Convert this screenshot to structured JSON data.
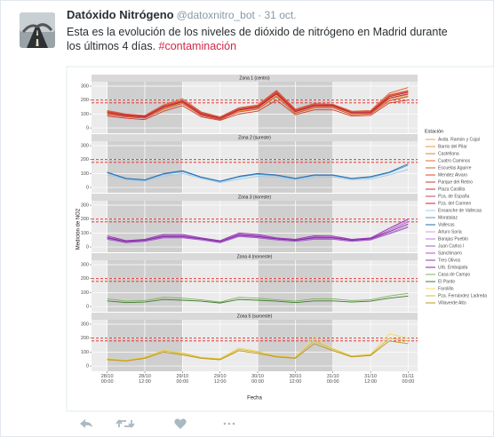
{
  "tweet": {
    "name": "Datóxido Nitrógeno",
    "meta": "@datoxnitro_bot · 31 oct.",
    "text_lines": [
      "Esta es la evolución de los niveles de dióxido de nitrógeno en Madrid durante",
      "los últimos 4 días."
    ],
    "hashtag": "#contaminación"
  },
  "figure": {
    "ylabel": "Medición de NO2",
    "xlabel": "Fecha",
    "legend_title": "Estación"
  },
  "chart_data": [
    {
      "type": "line",
      "title": "Zona 1 (centro)",
      "x": [
        "28/10 00:00",
        "28/10 06:00",
        "28/10 12:00",
        "28/10 18:00",
        "29/10 00:00",
        "29/10 06:00",
        "29/10 12:00",
        "29/10 18:00",
        "30/10 00:00",
        "30/10 06:00",
        "30/10 12:00",
        "30/10 18:00",
        "31/10 00:00",
        "31/10 06:00",
        "31/10 12:00",
        "31/10 18:00",
        "01/11 00:00"
      ],
      "xlim": [
        "27/10 19:00",
        "01/11 03:00"
      ],
      "ylim": [
        -38,
        332
      ],
      "yticks": [
        0,
        100,
        200,
        300
      ],
      "xticks": [
        "28/10 00:00",
        "28/10 12:00",
        "29/10 00:00",
        "29/10 12:00",
        "30/10 00:00",
        "30/10 12:00",
        "31/10 00:00",
        "31/10 12:00",
        "01/11 00:00"
      ],
      "bands": [
        [
          "28/10 00:00",
          "29/10 00:00"
        ],
        [
          "30/10 00:00",
          "31/10 00:00"
        ]
      ],
      "reference_lines": [
        180,
        200
      ],
      "series": [
        {
          "name": "Avda. Ramón y Cajal",
          "color": "#e9a63f",
          "values": [
            100,
            85,
            75,
            140,
            180,
            95,
            65,
            120,
            140,
            230,
            110,
            150,
            150,
            100,
            105,
            200,
            230
          ]
        },
        {
          "name": "Barrio del Pilar",
          "color": "#e6943a",
          "values": [
            120,
            95,
            85,
            160,
            200,
            110,
            75,
            140,
            160,
            260,
            130,
            170,
            165,
            115,
            120,
            240,
            270
          ]
        },
        {
          "name": "Castellana",
          "color": "#e38236",
          "values": [
            105,
            88,
            78,
            145,
            185,
            98,
            68,
            125,
            145,
            240,
            115,
            155,
            155,
            105,
            108,
            210,
            240
          ]
        },
        {
          "name": "Cuatro Caminos",
          "color": "#df6f31",
          "values": [
            115,
            92,
            82,
            155,
            195,
            105,
            72,
            135,
            155,
            255,
            125,
            165,
            162,
            112,
            115,
            230,
            260
          ]
        },
        {
          "name": "Escuelas Aguirre",
          "color": "#da5c2c",
          "values": [
            125,
            100,
            90,
            165,
            210,
            115,
            80,
            145,
            165,
            270,
            135,
            175,
            170,
            120,
            125,
            250,
            290
          ]
        },
        {
          "name": "Mendez Alvaro",
          "color": "#d44a29",
          "values": [
            95,
            80,
            70,
            135,
            175,
            90,
            60,
            115,
            135,
            225,
            105,
            145,
            145,
            95,
            100,
            195,
            225
          ]
        },
        {
          "name": "Parque del Retiro",
          "color": "#cd3b28",
          "values": [
            85,
            70,
            60,
            120,
            160,
            80,
            55,
            100,
            120,
            200,
            95,
            130,
            130,
            85,
            90,
            180,
            200
          ]
        },
        {
          "name": "Plaza Castilla",
          "color": "#c52d2a",
          "values": [
            110,
            90,
            80,
            150,
            190,
            100,
            70,
            130,
            150,
            250,
            120,
            160,
            160,
            110,
            112,
            225,
            255
          ]
        },
        {
          "name": "Pza. de España",
          "color": "#d0405a",
          "values": [
            118,
            96,
            86,
            158,
            198,
            108,
            74,
            138,
            158,
            262,
            128,
            168,
            166,
            114,
            118,
            235,
            265
          ]
        },
        {
          "name": "Pza. del Carmen",
          "color": "#b82346",
          "values": [
            108,
            88,
            78,
            148,
            188,
            98,
            68,
            128,
            148,
            245,
            118,
            158,
            158,
            108,
            110,
            215,
            245
          ]
        }
      ]
    },
    {
      "type": "line",
      "title": "Zona 2 (sureste)",
      "x": [
        "28/10 00:00",
        "28/10 06:00",
        "28/10 12:00",
        "28/10 18:00",
        "29/10 00:00",
        "29/10 06:00",
        "29/10 12:00",
        "29/10 18:00",
        "30/10 00:00",
        "30/10 06:00",
        "30/10 12:00",
        "30/10 18:00",
        "31/10 00:00",
        "31/10 06:00",
        "31/10 12:00",
        "31/10 18:00",
        "01/11 00:00"
      ],
      "xlim": [
        "27/10 19:00",
        "01/11 03:00"
      ],
      "ylim": [
        -38,
        332
      ],
      "yticks": [
        0,
        100,
        200,
        300
      ],
      "xticks": [
        "28/10 00:00",
        "28/10 12:00",
        "29/10 00:00",
        "29/10 12:00",
        "30/10 00:00",
        "30/10 12:00",
        "31/10 00:00",
        "31/10 12:00",
        "01/11 00:00"
      ],
      "bands": [
        [
          "28/10 00:00",
          "29/10 00:00"
        ],
        [
          "30/10 00:00",
          "31/10 00:00"
        ]
      ],
      "reference_lines": [
        180,
        200
      ],
      "series": [
        {
          "name": "Ensanche de Vallecas",
          "color": "#9ccbe8",
          "values": [
            90,
            55,
            45,
            80,
            100,
            65,
            35,
            60,
            80,
            75,
            55,
            70,
            75,
            55,
            60,
            90,
            130
          ]
        },
        {
          "name": "Moratalaz",
          "color": "#4d9cd3",
          "values": [
            105,
            62,
            52,
            95,
            115,
            72,
            42,
            75,
            95,
            85,
            62,
            85,
            85,
            62,
            72,
            105,
            160
          ]
        },
        {
          "name": "Vallecas",
          "color": "#2a6aab",
          "values": [
            110,
            65,
            55,
            100,
            120,
            75,
            45,
            80,
            100,
            90,
            65,
            90,
            90,
            65,
            78,
            110,
            170
          ]
        }
      ]
    },
    {
      "type": "line",
      "title": "Zona 3 (noreste)",
      "x": [
        "28/10 00:00",
        "28/10 06:00",
        "28/10 12:00",
        "28/10 18:00",
        "29/10 00:00",
        "29/10 06:00",
        "29/10 12:00",
        "29/10 18:00",
        "30/10 00:00",
        "30/10 06:00",
        "30/10 12:00",
        "30/10 18:00",
        "31/10 00:00",
        "31/10 06:00",
        "31/10 12:00",
        "31/10 18:00",
        "01/11 00:00"
      ],
      "xlim": [
        "27/10 19:00",
        "01/11 03:00"
      ],
      "ylim": [
        -38,
        332
      ],
      "yticks": [
        0,
        100,
        200,
        300
      ],
      "xticks": [
        "28/10 00:00",
        "28/10 12:00",
        "29/10 00:00",
        "29/10 12:00",
        "30/10 00:00",
        "30/10 12:00",
        "31/10 00:00",
        "31/10 12:00",
        "01/11 00:00"
      ],
      "bands": [
        [
          "28/10 00:00",
          "29/10 00:00"
        ],
        [
          "30/10 00:00",
          "31/10 00:00"
        ]
      ],
      "reference_lines": [
        180,
        200
      ],
      "series": [
        {
          "name": "Arturo Soria",
          "color": "#d39ae0",
          "values": [
            75,
            42,
            52,
            85,
            85,
            62,
            42,
            95,
            85,
            62,
            52,
            75,
            72,
            52,
            62,
            130,
            190
          ]
        },
        {
          "name": "Barajas Pueblo",
          "color": "#bb7ad6",
          "values": [
            60,
            35,
            45,
            70,
            70,
            55,
            35,
            80,
            70,
            55,
            45,
            60,
            60,
            45,
            55,
            100,
            150
          ]
        },
        {
          "name": "Juan Carlos I",
          "color": "#a35ec9",
          "values": [
            55,
            30,
            40,
            65,
            65,
            50,
            30,
            75,
            65,
            50,
            40,
            55,
            55,
            40,
            50,
            95,
            140
          ]
        },
        {
          "name": "Sanchinarro",
          "color": "#b84fc2",
          "values": [
            70,
            40,
            50,
            80,
            80,
            60,
            40,
            90,
            80,
            60,
            50,
            70,
            70,
            50,
            60,
            120,
            180
          ]
        },
        {
          "name": "Tres Olivos",
          "color": "#9535b2",
          "values": [
            80,
            45,
            55,
            90,
            90,
            65,
            45,
            100,
            90,
            65,
            55,
            80,
            78,
            55,
            65,
            135,
            200
          ]
        },
        {
          "name": "Urb. Embajada",
          "color": "#722c9c",
          "values": [
            65,
            38,
            48,
            75,
            75,
            58,
            38,
            85,
            75,
            58,
            48,
            65,
            65,
            48,
            58,
            110,
            165
          ]
        }
      ]
    },
    {
      "type": "line",
      "title": "Zona 4 (noroeste)",
      "x": [
        "28/10 00:00",
        "28/10 06:00",
        "28/10 12:00",
        "28/10 18:00",
        "29/10 00:00",
        "29/10 06:00",
        "29/10 12:00",
        "29/10 18:00",
        "30/10 00:00",
        "30/10 06:00",
        "30/10 12:00",
        "30/10 18:00",
        "31/10 00:00",
        "31/10 06:00",
        "31/10 12:00",
        "31/10 18:00",
        "01/11 00:00"
      ],
      "xlim": [
        "27/10 19:00",
        "01/11 03:00"
      ],
      "ylim": [
        -38,
        332
      ],
      "yticks": [
        0,
        100,
        200,
        300
      ],
      "xticks": [
        "28/10 00:00",
        "28/10 12:00",
        "29/10 00:00",
        "29/10 12:00",
        "30/10 00:00",
        "30/10 12:00",
        "31/10 00:00",
        "31/10 12:00",
        "01/11 00:00"
      ],
      "bands": [
        [
          "28/10 00:00",
          "29/10 00:00"
        ],
        [
          "30/10 00:00",
          "31/10 00:00"
        ]
      ],
      "reference_lines": [
        180,
        200
      ],
      "series": [
        {
          "name": "Casa de Campo",
          "color": "#7fb05c",
          "values": [
            55,
            38,
            42,
            65,
            60,
            48,
            32,
            65,
            60,
            48,
            38,
            55,
            55,
            42,
            48,
            75,
            95
          ]
        },
        {
          "name": "El Pardo",
          "color": "#3b7a2b",
          "values": [
            40,
            28,
            32,
            50,
            45,
            38,
            25,
            50,
            45,
            38,
            28,
            40,
            40,
            32,
            38,
            60,
            75
          ]
        }
      ]
    },
    {
      "type": "line",
      "title": "Zona 5 (suroeste)",
      "x": [
        "28/10 00:00",
        "28/10 06:00",
        "28/10 12:00",
        "28/10 18:00",
        "29/10 00:00",
        "29/10 06:00",
        "29/10 12:00",
        "29/10 18:00",
        "30/10 00:00",
        "30/10 06:00",
        "30/10 12:00",
        "30/10 18:00",
        "31/10 00:00",
        "31/10 06:00",
        "31/10 12:00",
        "31/10 18:00",
        "01/11 00:00"
      ],
      "xlim": [
        "27/10 19:00",
        "01/11 03:00"
      ],
      "ylim": [
        -38,
        332
      ],
      "yticks": [
        0,
        100,
        200,
        300
      ],
      "xticks": [
        "28/10 00:00",
        "28/10 12:00",
        "29/10 00:00",
        "29/10 12:00",
        "30/10 00:00",
        "30/10 12:00",
        "31/10 00:00",
        "31/10 12:00",
        "01/11 00:00"
      ],
      "bands": [
        [
          "28/10 00:00",
          "29/10 00:00"
        ],
        [
          "30/10 00:00",
          "31/10 00:00"
        ]
      ],
      "reference_lines": [
        180,
        200
      ],
      "series": [
        {
          "name": "Farolillo",
          "color": "#f1d868",
          "values": [
            55,
            42,
            65,
            115,
            95,
            62,
            52,
            130,
            105,
            72,
            62,
            210,
            125,
            72,
            85,
            230,
            200
          ]
        },
        {
          "name": "Pza. Fernández Ladreda",
          "color": "#dcb92e",
          "values": [
            50,
            40,
            60,
            110,
            90,
            60,
            50,
            120,
            100,
            70,
            60,
            180,
            120,
            70,
            80,
            200,
            180
          ]
        },
        {
          "name": "Villaverde Alto",
          "color": "#b8961c",
          "values": [
            45,
            36,
            55,
            100,
            80,
            55,
            45,
            110,
            90,
            65,
            55,
            160,
            110,
            65,
            75,
            180,
            160
          ]
        }
      ]
    }
  ]
}
